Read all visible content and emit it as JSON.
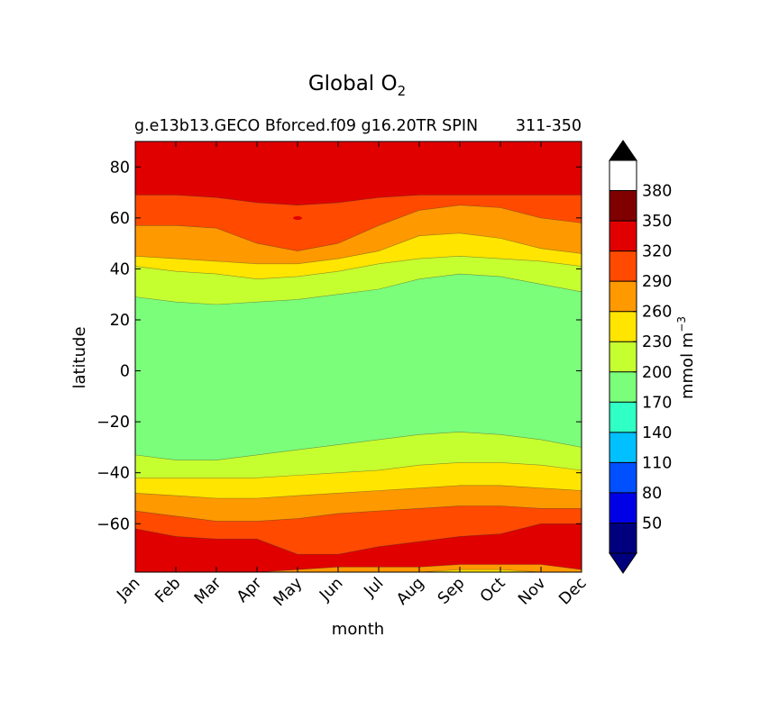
{
  "chart_data": {
    "type": "heatmap",
    "title": "Global O",
    "title_subscript": "2",
    "subtitle_left": "g.e13b13.GECO Bforced.f09 g16.20TR SPIN",
    "subtitle_right": "311-350",
    "xlabel": "month",
    "ylabel": "latitude",
    "x_categories": [
      "Jan",
      "Feb",
      "Mar",
      "Apr",
      "May",
      "Jun",
      "Jul",
      "Aug",
      "Sep",
      "Oct",
      "Nov",
      "Dec"
    ],
    "ylim": [
      -79,
      90
    ],
    "y_ticks": [
      -60,
      -40,
      -20,
      0,
      20,
      40,
      60,
      80
    ],
    "colorbar": {
      "label": "mmol m",
      "label_exponent": "−3",
      "tick_values": [
        50,
        80,
        110,
        140,
        170,
        200,
        230,
        260,
        290,
        320,
        350,
        380
      ],
      "levels": [
        20,
        50,
        80,
        110,
        140,
        170,
        200,
        230,
        260,
        290,
        320,
        350,
        380,
        410
      ],
      "colors": [
        "#00007f",
        "#0000e6",
        "#0050ff",
        "#00c0ff",
        "#30ffc6",
        "#7bff7b",
        "#c6ff30",
        "#ffe500",
        "#ff9900",
        "#ff4a00",
        "#e00000",
        "#800000"
      ],
      "extend_min_color": "#00007f",
      "extend_max_color": "#000000"
    },
    "background_fill_color": "#e00000",
    "contour_regions": [
      {
        "level": "320-350",
        "color": "#ff4a00",
        "upper": [
          [
            1,
            69
          ],
          [
            2,
            69
          ],
          [
            3,
            68
          ],
          [
            4,
            66
          ],
          [
            5,
            65
          ],
          [
            6,
            66
          ],
          [
            7,
            68
          ],
          [
            8,
            69
          ],
          [
            9,
            69
          ],
          [
            10,
            69
          ],
          [
            11,
            69
          ],
          [
            12,
            69
          ]
        ],
        "lower": [
          [
            1,
            -62
          ],
          [
            2,
            -65
          ],
          [
            3,
            -66
          ],
          [
            4,
            -66
          ],
          [
            5,
            -72
          ],
          [
            6,
            -72
          ],
          [
            7,
            -69
          ],
          [
            8,
            -67
          ],
          [
            9,
            -65
          ],
          [
            10,
            -64
          ],
          [
            11,
            -60
          ],
          [
            12,
            -60
          ]
        ]
      },
      {
        "level": "290-320",
        "color": "#ff9900",
        "upper": [
          [
            1,
            57
          ],
          [
            2,
            57
          ],
          [
            3,
            56
          ],
          [
            4,
            50
          ],
          [
            5,
            47
          ],
          [
            6,
            50
          ],
          [
            7,
            57
          ],
          [
            8,
            63
          ],
          [
            9,
            65
          ],
          [
            10,
            64
          ],
          [
            11,
            60
          ],
          [
            12,
            58
          ]
        ],
        "lower": [
          [
            1,
            -55
          ],
          [
            2,
            -57
          ],
          [
            3,
            -59
          ],
          [
            4,
            -59
          ],
          [
            5,
            -58
          ],
          [
            6,
            -56
          ],
          [
            7,
            -55
          ],
          [
            8,
            -54
          ],
          [
            9,
            -53
          ],
          [
            10,
            -53
          ],
          [
            11,
            -54
          ],
          [
            12,
            -54
          ]
        ]
      },
      {
        "level": "260-290",
        "color": "#ffe500",
        "upper": [
          [
            1,
            45
          ],
          [
            2,
            44
          ],
          [
            3,
            43
          ],
          [
            4,
            42
          ],
          [
            5,
            42
          ],
          [
            6,
            44
          ],
          [
            7,
            47
          ],
          [
            8,
            53
          ],
          [
            9,
            54
          ],
          [
            10,
            52
          ],
          [
            11,
            48
          ],
          [
            12,
            46
          ]
        ],
        "lower": [
          [
            1,
            -48
          ],
          [
            2,
            -49
          ],
          [
            3,
            -50
          ],
          [
            4,
            -50
          ],
          [
            5,
            -49
          ],
          [
            6,
            -48
          ],
          [
            7,
            -47
          ],
          [
            8,
            -46
          ],
          [
            9,
            -45
          ],
          [
            10,
            -45
          ],
          [
            11,
            -46
          ],
          [
            12,
            -47
          ]
        ]
      },
      {
        "level": "230-260",
        "color": "#c6ff30",
        "upper": [
          [
            1,
            41
          ],
          [
            2,
            39
          ],
          [
            3,
            38
          ],
          [
            4,
            36
          ],
          [
            5,
            37
          ],
          [
            6,
            39
          ],
          [
            7,
            42
          ],
          [
            8,
            44
          ],
          [
            9,
            45
          ],
          [
            10,
            44
          ],
          [
            11,
            43
          ],
          [
            12,
            41
          ]
        ],
        "lower": [
          [
            1,
            -42
          ],
          [
            2,
            -42
          ],
          [
            3,
            -42
          ],
          [
            4,
            -42
          ],
          [
            5,
            -41
          ],
          [
            6,
            -40
          ],
          [
            7,
            -39
          ],
          [
            8,
            -37
          ],
          [
            9,
            -36
          ],
          [
            10,
            -36
          ],
          [
            11,
            -37
          ],
          [
            12,
            -39
          ]
        ]
      },
      {
        "level": "200-230",
        "color": "#7bff7b",
        "upper": [
          [
            1,
            29
          ],
          [
            2,
            27
          ],
          [
            3,
            26
          ],
          [
            4,
            27
          ],
          [
            5,
            28
          ],
          [
            6,
            30
          ],
          [
            7,
            32
          ],
          [
            8,
            36
          ],
          [
            9,
            38
          ],
          [
            10,
            37
          ],
          [
            11,
            34
          ],
          [
            12,
            31
          ]
        ],
        "lower": [
          [
            1,
            -33
          ],
          [
            2,
            -35
          ],
          [
            3,
            -35
          ],
          [
            4,
            -33
          ],
          [
            5,
            -31
          ],
          [
            6,
            -29
          ],
          [
            7,
            -27
          ],
          [
            8,
            -25
          ],
          [
            9,
            -24
          ],
          [
            10,
            -25
          ],
          [
            11,
            -27
          ],
          [
            12,
            -30
          ]
        ]
      }
    ],
    "southern_edge_bands": [
      {
        "level": "290-320",
        "color": "#ff9900",
        "boundary": [
          [
            1,
            -79
          ],
          [
            2,
            -79
          ],
          [
            3,
            -79
          ],
          [
            4,
            -79
          ],
          [
            5,
            -78
          ],
          [
            6,
            -77
          ],
          [
            7,
            -77
          ],
          [
            8,
            -77
          ],
          [
            9,
            -76
          ],
          [
            10,
            -76
          ],
          [
            11,
            -76
          ],
          [
            12,
            -78
          ]
        ]
      },
      {
        "level": "260-290",
        "color": "#ffe500",
        "boundary": [
          [
            1,
            -79
          ],
          [
            2,
            -79
          ],
          [
            3,
            -79
          ],
          [
            4,
            -79
          ],
          [
            5,
            -79
          ],
          [
            6,
            -79
          ],
          [
            7,
            -79
          ],
          [
            8,
            -79
          ],
          [
            9,
            -78
          ],
          [
            10,
            -78
          ],
          [
            11,
            -79
          ],
          [
            12,
            -79
          ]
        ]
      }
    ]
  }
}
